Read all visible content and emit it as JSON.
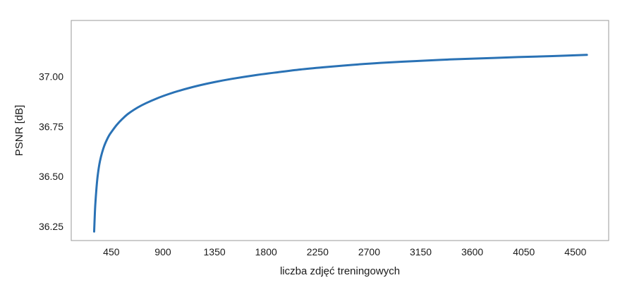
{
  "chart_data": {
    "type": "line",
    "title": "",
    "xlabel": "liczba zdjęć treningowych",
    "ylabel": "PSNR [dB]",
    "xlim": [
      100,
      4790
    ],
    "ylim": [
      36.18,
      37.28
    ],
    "x_ticks": [
      450,
      900,
      1350,
      1800,
      2250,
      2700,
      3150,
      3600,
      4050,
      4500
    ],
    "y_ticks": [
      36.25,
      36.5,
      36.75,
      37.0
    ],
    "y_tick_labels": [
      "36.25",
      "36.50",
      "36.75",
      "37.00"
    ],
    "grid": false,
    "color": "#2a72b5",
    "series": [
      {
        "x": [
          300,
          305,
          310,
          320,
          330,
          345,
          360,
          380,
          400,
          430,
          460,
          500,
          550,
          600,
          680,
          750,
          850,
          950,
          1050,
          1200,
          1350,
          1500,
          1700,
          1900,
          2100,
          2300,
          2550,
          2800,
          3100,
          3400,
          3700,
          4000,
          4300,
          4600
        ],
        "y": [
          36.225,
          36.3,
          36.36,
          36.44,
          36.5,
          36.56,
          36.6,
          36.64,
          36.67,
          36.705,
          36.73,
          36.76,
          36.79,
          36.815,
          36.845,
          36.866,
          36.891,
          36.912,
          36.93,
          36.953,
          36.972,
          36.988,
          37.006,
          37.021,
          37.035,
          37.046,
          37.058,
          37.068,
          37.077,
          37.085,
          37.091,
          37.097,
          37.102,
          37.108
        ]
      }
    ]
  }
}
